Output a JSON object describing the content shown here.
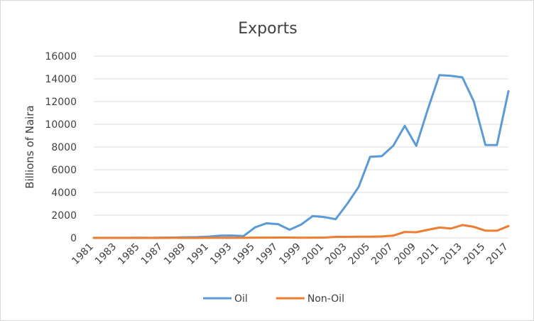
{
  "chart_data": {
    "type": "line",
    "title": "Exports",
    "xlabel": "",
    "ylabel": "Billions of Naira",
    "ylim": [
      0,
      16000
    ],
    "yticks": [
      0,
      2000,
      4000,
      6000,
      8000,
      10000,
      12000,
      14000,
      16000
    ],
    "x": [
      1981,
      1982,
      1983,
      1984,
      1985,
      1986,
      1987,
      1988,
      1989,
      1990,
      1991,
      1992,
      1993,
      1994,
      1995,
      1996,
      1997,
      1998,
      1999,
      2000,
      2001,
      2002,
      2003,
      2004,
      2005,
      2006,
      2007,
      2008,
      2009,
      2010,
      2011,
      2012,
      2013,
      2014,
      2015,
      2016,
      2017
    ],
    "xtick_labels": [
      "1981",
      "1983",
      "1985",
      "1987",
      "1989",
      "1991",
      "1993",
      "1995",
      "1997",
      "1999",
      "2001",
      "2003",
      "2005",
      "2007",
      "2009",
      "2011",
      "2013",
      "2015",
      "2017"
    ],
    "grid": true,
    "legend": "bottom",
    "series": [
      {
        "name": "Oil",
        "color": "#5b9bd5",
        "values": [
          8,
          8,
          7,
          9,
          11,
          9,
          28,
          29,
          56,
          71,
          121,
          201,
          213,
          160,
          928,
          1286,
          1212,
          718,
          1169,
          1920,
          1839,
          1650,
          2994,
          4489,
          7141,
          7191,
          8110,
          9861,
          8106,
          11300,
          14324,
          14260,
          14132,
          12007,
          8184,
          8177,
          12910
        ]
      },
      {
        "name": "Non-Oil",
        "color": "#ed7d31",
        "values": [
          2,
          2,
          2,
          2,
          3,
          2,
          3,
          4,
          3,
          3,
          5,
          4,
          5,
          6,
          24,
          23,
          29,
          34,
          19,
          24,
          28,
          95,
          95,
          113,
          106,
          133,
          199,
          525,
          500,
          711,
          913,
          828,
          1131,
          974,
          640,
          631,
          1043
        ]
      }
    ]
  }
}
